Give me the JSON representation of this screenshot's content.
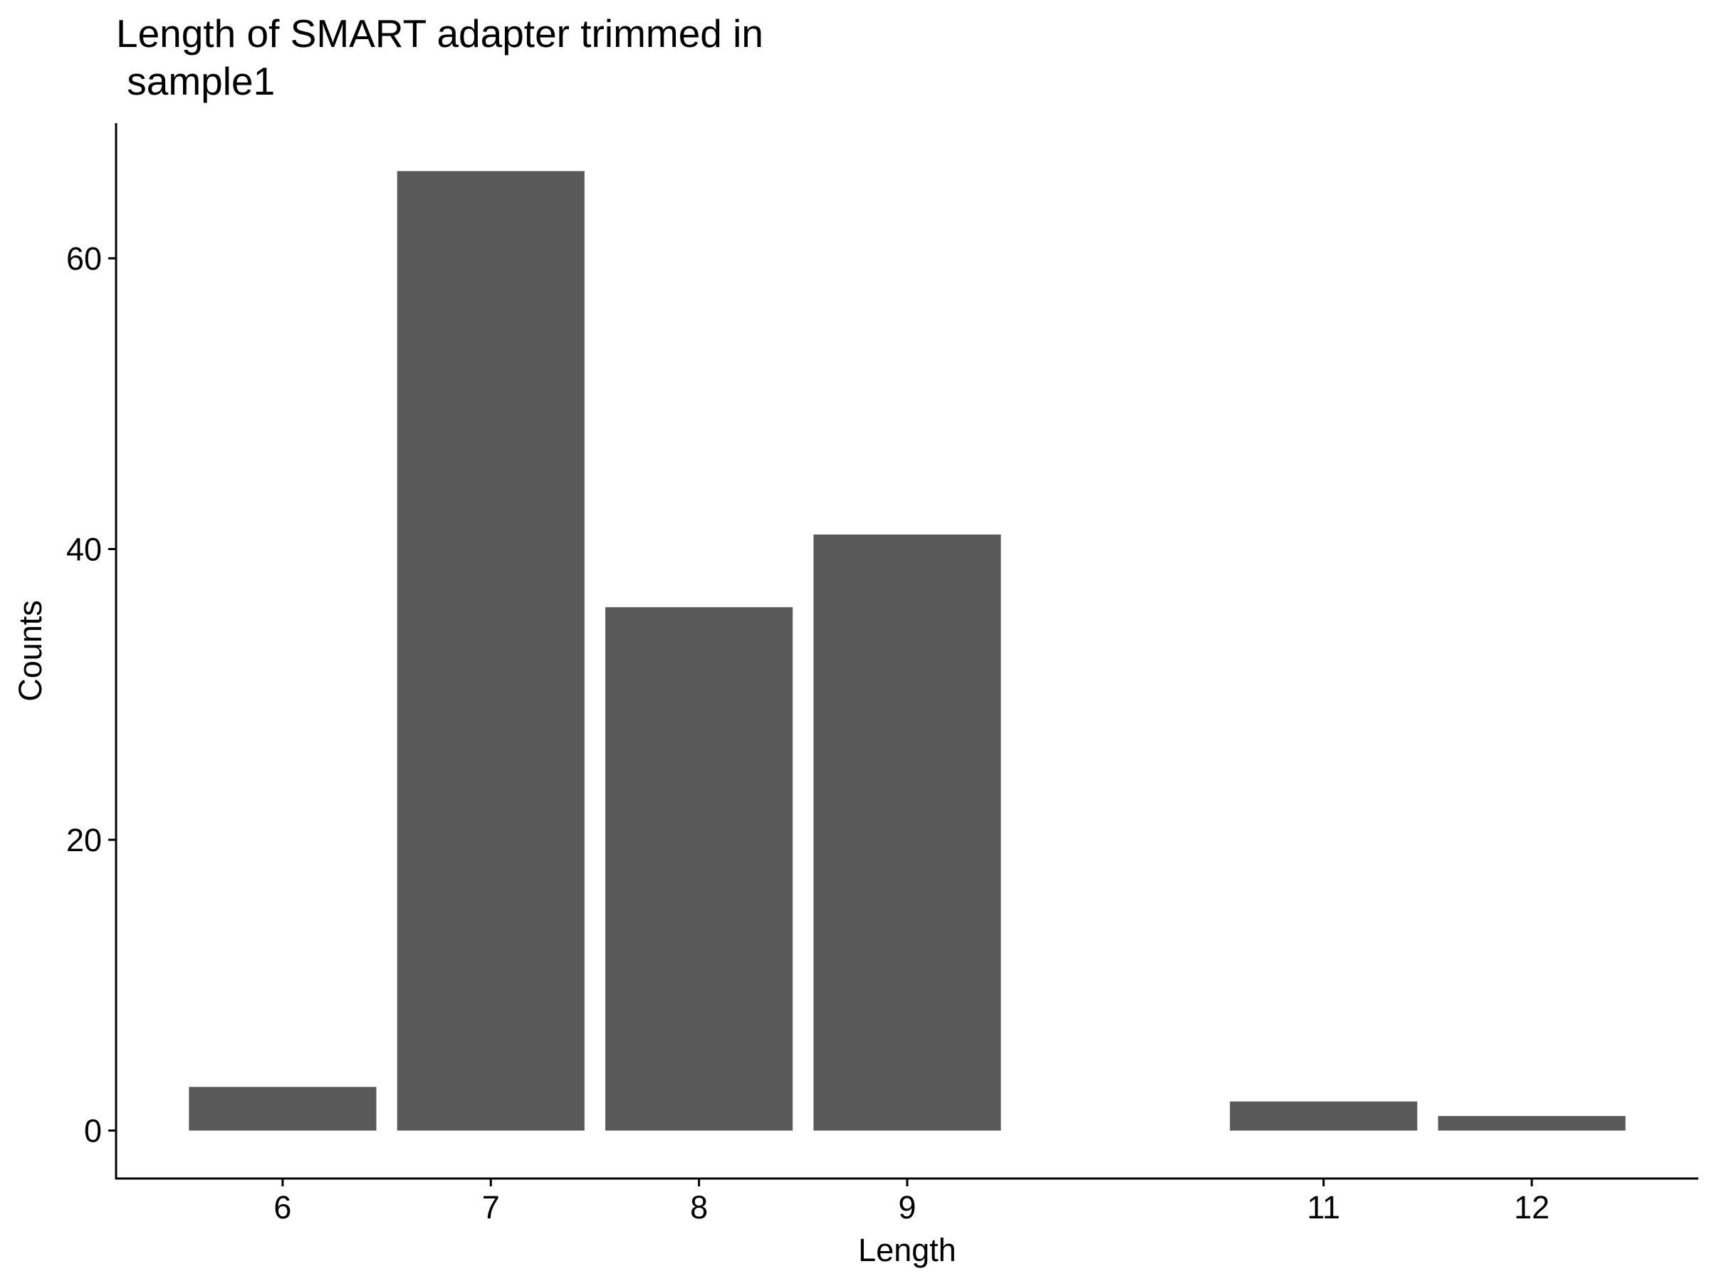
{
  "chart_data": {
    "type": "bar",
    "title_lines": [
      "Length of SMART adapter trimmed in",
      " sample1"
    ],
    "xlabel": "Length",
    "ylabel": "Counts",
    "x": [
      6,
      7,
      8,
      9,
      11,
      12
    ],
    "values": [
      3,
      66,
      36,
      41,
      2,
      1
    ],
    "categories": [
      "6",
      "7",
      "8",
      "9",
      "11",
      "12"
    ],
    "x_range": [
      5.2,
      12.8
    ],
    "ylim": [
      -3.3,
      69.3
    ],
    "y_ticks": [
      0,
      20,
      40,
      60
    ],
    "y_tick_labels": [
      "0",
      "20",
      "40",
      "60"
    ],
    "bar_color": "#595959",
    "grid": false,
    "legend": "none"
  }
}
